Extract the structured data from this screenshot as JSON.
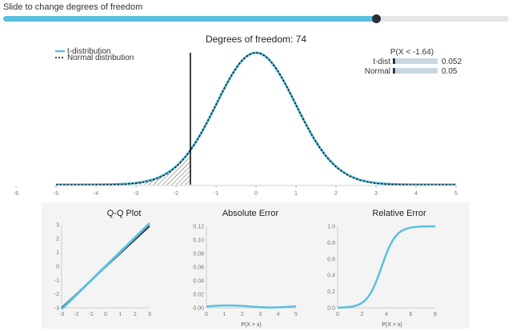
{
  "slider": {
    "label": "Slide to change degrees of freedom",
    "value": 74,
    "min": 1,
    "max": 100,
    "fill_color": "#5bc0de",
    "thumb_color": "#2a2f3a"
  },
  "main_plot": {
    "title": "Degrees of freedom: 74",
    "legend": {
      "t_label": "t-distribution",
      "normal_label": "Normal distribution"
    },
    "x_ticks": [
      "-6",
      "-5",
      "-4",
      "-3",
      "-2",
      "-1",
      "0",
      "1",
      "2",
      "3",
      "4",
      "5"
    ],
    "cutoff": -1.64,
    "colors": {
      "t": "#5bc0de",
      "normal": "#111111"
    }
  },
  "prob_table": {
    "header": "P(X < -1.64)",
    "rows": [
      {
        "label": "t-dist",
        "value": "0.052"
      },
      {
        "label": "Normal",
        "value": "0.05"
      }
    ]
  },
  "chart_data": [
    {
      "type": "line",
      "title": "Degrees of freedom: 74",
      "series": [
        {
          "name": "t-distribution",
          "df": 74,
          "style": "solid"
        },
        {
          "name": "Normal distribution",
          "style": "dashed"
        }
      ],
      "xlim": [
        -6,
        5
      ],
      "shaded_region": "x < -1.64"
    },
    {
      "type": "line",
      "title": "Q-Q Plot",
      "x_ticks": [
        "-3",
        "-2",
        "-1",
        "0",
        "1",
        "2",
        "3"
      ],
      "y_ticks": [
        "-3",
        "-2",
        "-1",
        "0",
        "1",
        "2",
        "3"
      ],
      "xlim": [
        -3,
        3
      ],
      "ylim": [
        -3,
        3
      ]
    },
    {
      "type": "line",
      "title": "Absolute Error",
      "xlabel": "P(X > x)",
      "x_ticks": [
        "0",
        "1",
        "2",
        "3",
        "4",
        "5"
      ],
      "y_ticks": [
        "0.00",
        "0.02",
        "0.04",
        "0.06",
        "0.08",
        "0.10",
        "0.12"
      ],
      "xlim": [
        0,
        5
      ],
      "ylim": [
        0,
        0.12
      ]
    },
    {
      "type": "line",
      "title": "Relative Error",
      "xlabel": "P(X > x)",
      "x_ticks": [
        "0",
        "2",
        "4",
        "6",
        "8"
      ],
      "y_ticks": [
        "0.0",
        "0.2",
        "0.4",
        "0.6",
        "0.8",
        "1.0"
      ],
      "xlim": [
        0,
        8
      ],
      "ylim": [
        0,
        1
      ]
    }
  ]
}
